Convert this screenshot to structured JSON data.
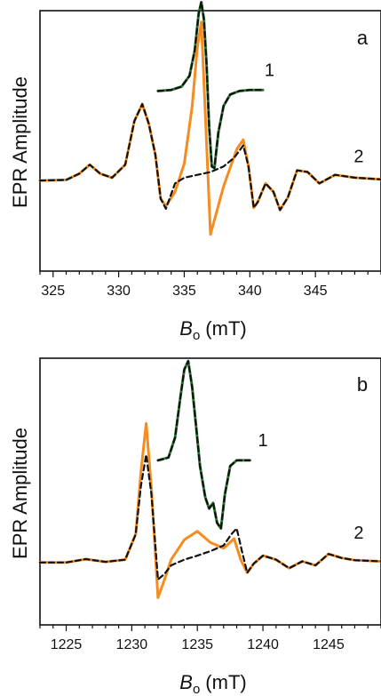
{
  "chart_data": [
    {
      "panel_label": "a",
      "type": "line",
      "ylabel": "EPR Amplitude",
      "xlabel_symbol": "B",
      "xlabel_subscript": "o",
      "xlabel_unit": "(mT)",
      "xlim": [
        324,
        350
      ],
      "ylim": [
        -1.6,
        3.0
      ],
      "xticks": [
        325,
        330,
        335,
        340,
        345
      ],
      "colors": {
        "experimental_1": "#2e7d32",
        "experimental_2": "#f68b1f",
        "simulation": "#111111"
      },
      "series": [
        {
          "name": "1",
          "role": "experimental",
          "x": [
            333.0,
            334.0,
            334.8,
            335.4,
            335.8,
            336.1,
            336.3,
            336.5,
            336.7,
            336.9,
            337.1,
            337.3,
            337.6,
            338.0,
            338.5,
            339.2,
            340.0,
            341.0
          ],
          "values": [
            1.58,
            1.6,
            1.66,
            1.85,
            2.3,
            2.95,
            3.15,
            2.85,
            2.05,
            0.95,
            0.25,
            0.22,
            0.85,
            1.32,
            1.52,
            1.58,
            1.6,
            1.6
          ]
        },
        {
          "name": "2",
          "role": "experimental",
          "x": [
            324.0,
            326.0,
            327.0,
            327.8,
            328.6,
            329.5,
            330.5,
            331.2,
            331.8,
            332.3,
            332.8,
            333.2,
            333.6,
            334.3,
            335.0,
            335.6,
            336.0,
            336.3,
            336.6,
            337.0,
            337.3,
            338.0,
            339.0,
            339.5,
            339.9,
            340.3,
            340.6,
            341.2,
            341.8,
            342.3,
            342.9,
            343.6,
            344.4,
            345.3,
            346.5,
            348.0,
            350.0
          ],
          "values": [
            0.0,
            0.01,
            0.12,
            0.28,
            0.12,
            0.05,
            0.28,
            1.05,
            1.35,
            1.0,
            0.45,
            -0.32,
            -0.45,
            -0.2,
            0.3,
            1.3,
            2.35,
            2.8,
            1.2,
            -0.95,
            -0.7,
            -0.1,
            0.55,
            0.72,
            0.25,
            -0.48,
            -0.38,
            -0.05,
            -0.2,
            -0.52,
            -0.3,
            0.18,
            0.15,
            -0.05,
            0.1,
            0.05,
            0.02
          ]
        },
        {
          "name": "",
          "role": "simulation",
          "x": [
            324.0,
            326.0,
            327.0,
            327.8,
            328.6,
            329.5,
            330.5,
            331.2,
            331.8,
            332.3,
            332.8,
            333.2,
            333.6,
            334.3,
            335.0,
            336.0,
            337.0,
            338.0,
            338.8,
            339.5,
            339.9,
            340.3,
            340.6,
            341.2,
            341.8,
            342.3,
            342.9,
            343.6,
            344.4,
            345.3,
            346.5,
            348.0,
            350.0
          ],
          "values": [
            0.0,
            0.01,
            0.12,
            0.28,
            0.12,
            0.05,
            0.28,
            1.05,
            1.35,
            1.0,
            0.45,
            -0.32,
            -0.5,
            -0.05,
            0.05,
            0.1,
            0.15,
            0.25,
            0.4,
            0.62,
            0.25,
            -0.48,
            -0.38,
            -0.05,
            -0.2,
            -0.52,
            -0.3,
            0.18,
            0.15,
            -0.05,
            0.1,
            0.05,
            0.02
          ]
        },
        {
          "name": "",
          "role": "simulation",
          "x": [
            333.0,
            334.0,
            334.8,
            335.4,
            335.8,
            336.1,
            336.3,
            336.5,
            336.7,
            336.9,
            337.1,
            337.3,
            337.6,
            338.0,
            338.5,
            339.2,
            340.0,
            341.0
          ],
          "values": [
            1.58,
            1.6,
            1.66,
            1.85,
            2.3,
            2.95,
            3.15,
            2.85,
            2.05,
            0.95,
            0.25,
            0.22,
            0.85,
            1.32,
            1.52,
            1.58,
            1.6,
            1.6
          ]
        }
      ],
      "trace_labels": [
        {
          "text": "1",
          "x": 341.5,
          "y": 1.85
        },
        {
          "text": "2",
          "x": 348.3,
          "y": 0.32
        }
      ]
    },
    {
      "panel_label": "b",
      "type": "line",
      "ylabel": "EPR Amplitude",
      "xlabel_symbol": "B",
      "xlabel_subscript": "o",
      "xlabel_unit": "(mT)",
      "xlim": [
        1223,
        1249
      ],
      "ylim": [
        -1.1,
        3.6
      ],
      "xticks": [
        1225,
        1230,
        1235,
        1240,
        1245
      ],
      "colors": {
        "experimental_1": "#2e7d32",
        "experimental_2": "#f68b1f",
        "simulation": "#111111"
      },
      "series": [
        {
          "name": "1",
          "role": "experimental",
          "x": [
            1232.0,
            1232.8,
            1233.3,
            1233.7,
            1234.0,
            1234.3,
            1234.6,
            1234.9,
            1235.2,
            1235.6,
            1235.9,
            1236.2,
            1236.5,
            1236.8,
            1237.1,
            1237.5,
            1238.0,
            1239.0
          ],
          "values": [
            1.8,
            1.85,
            2.2,
            2.9,
            3.4,
            3.55,
            3.1,
            2.4,
            1.7,
            1.15,
            0.95,
            1.05,
            0.7,
            0.6,
            1.2,
            1.7,
            1.8,
            1.8
          ]
        },
        {
          "name": "2",
          "role": "experimental",
          "x": [
            1223.0,
            1225.0,
            1226.5,
            1228.0,
            1229.5,
            1230.3,
            1230.7,
            1231.1,
            1231.5,
            1232.0,
            1232.5,
            1233.0,
            1234.0,
            1235.0,
            1236.0,
            1237.0,
            1237.8,
            1238.3,
            1238.8,
            1239.3,
            1240.0,
            1241.0,
            1242.0,
            1243.0,
            1244.0,
            1245.0,
            1246.0,
            1247.0,
            1249.0
          ],
          "values": [
            0.0,
            0.0,
            0.06,
            0.01,
            0.05,
            0.5,
            1.6,
            2.45,
            1.3,
            -0.62,
            -0.3,
            0.05,
            0.4,
            0.55,
            0.35,
            0.25,
            0.42,
            0.05,
            -0.18,
            -0.02,
            0.12,
            0.05,
            -0.1,
            0.02,
            -0.05,
            0.15,
            0.08,
            0.04,
            0.02
          ]
        },
        {
          "name": "",
          "role": "simulation",
          "x": [
            1223.0,
            1225.0,
            1226.5,
            1228.0,
            1229.5,
            1230.3,
            1230.7,
            1231.1,
            1231.5,
            1232.0,
            1232.5,
            1233.0,
            1234.0,
            1235.0,
            1236.0,
            1237.0,
            1237.6,
            1238.0,
            1238.4,
            1238.8,
            1239.3,
            1240.0,
            1241.0,
            1242.0,
            1243.0,
            1244.0,
            1245.0,
            1246.0,
            1247.0,
            1249.0
          ],
          "values": [
            0.0,
            0.0,
            0.06,
            0.01,
            0.05,
            0.5,
            1.35,
            1.9,
            1.2,
            -0.3,
            -0.2,
            -0.05,
            0.05,
            0.12,
            0.2,
            0.3,
            0.5,
            0.6,
            0.2,
            -0.18,
            -0.02,
            0.12,
            0.05,
            -0.1,
            0.02,
            -0.05,
            0.15,
            0.08,
            0.04,
            0.02
          ]
        },
        {
          "name": "",
          "role": "simulation",
          "x": [
            1232.0,
            1232.8,
            1233.3,
            1233.7,
            1234.0,
            1234.3,
            1234.6,
            1234.9,
            1235.2,
            1235.6,
            1235.9,
            1236.2,
            1236.5,
            1236.8,
            1237.1,
            1237.5,
            1238.0,
            1239.0
          ],
          "values": [
            1.8,
            1.85,
            2.2,
            2.9,
            3.4,
            3.55,
            3.1,
            2.4,
            1.7,
            1.15,
            0.95,
            1.05,
            0.7,
            0.6,
            1.2,
            1.7,
            1.8,
            1.8
          ]
        }
      ],
      "trace_labels": [
        {
          "text": "1",
          "x": 1240.0,
          "y": 2.05
        },
        {
          "text": "2",
          "x": 1247.3,
          "y": 0.42
        }
      ]
    }
  ]
}
